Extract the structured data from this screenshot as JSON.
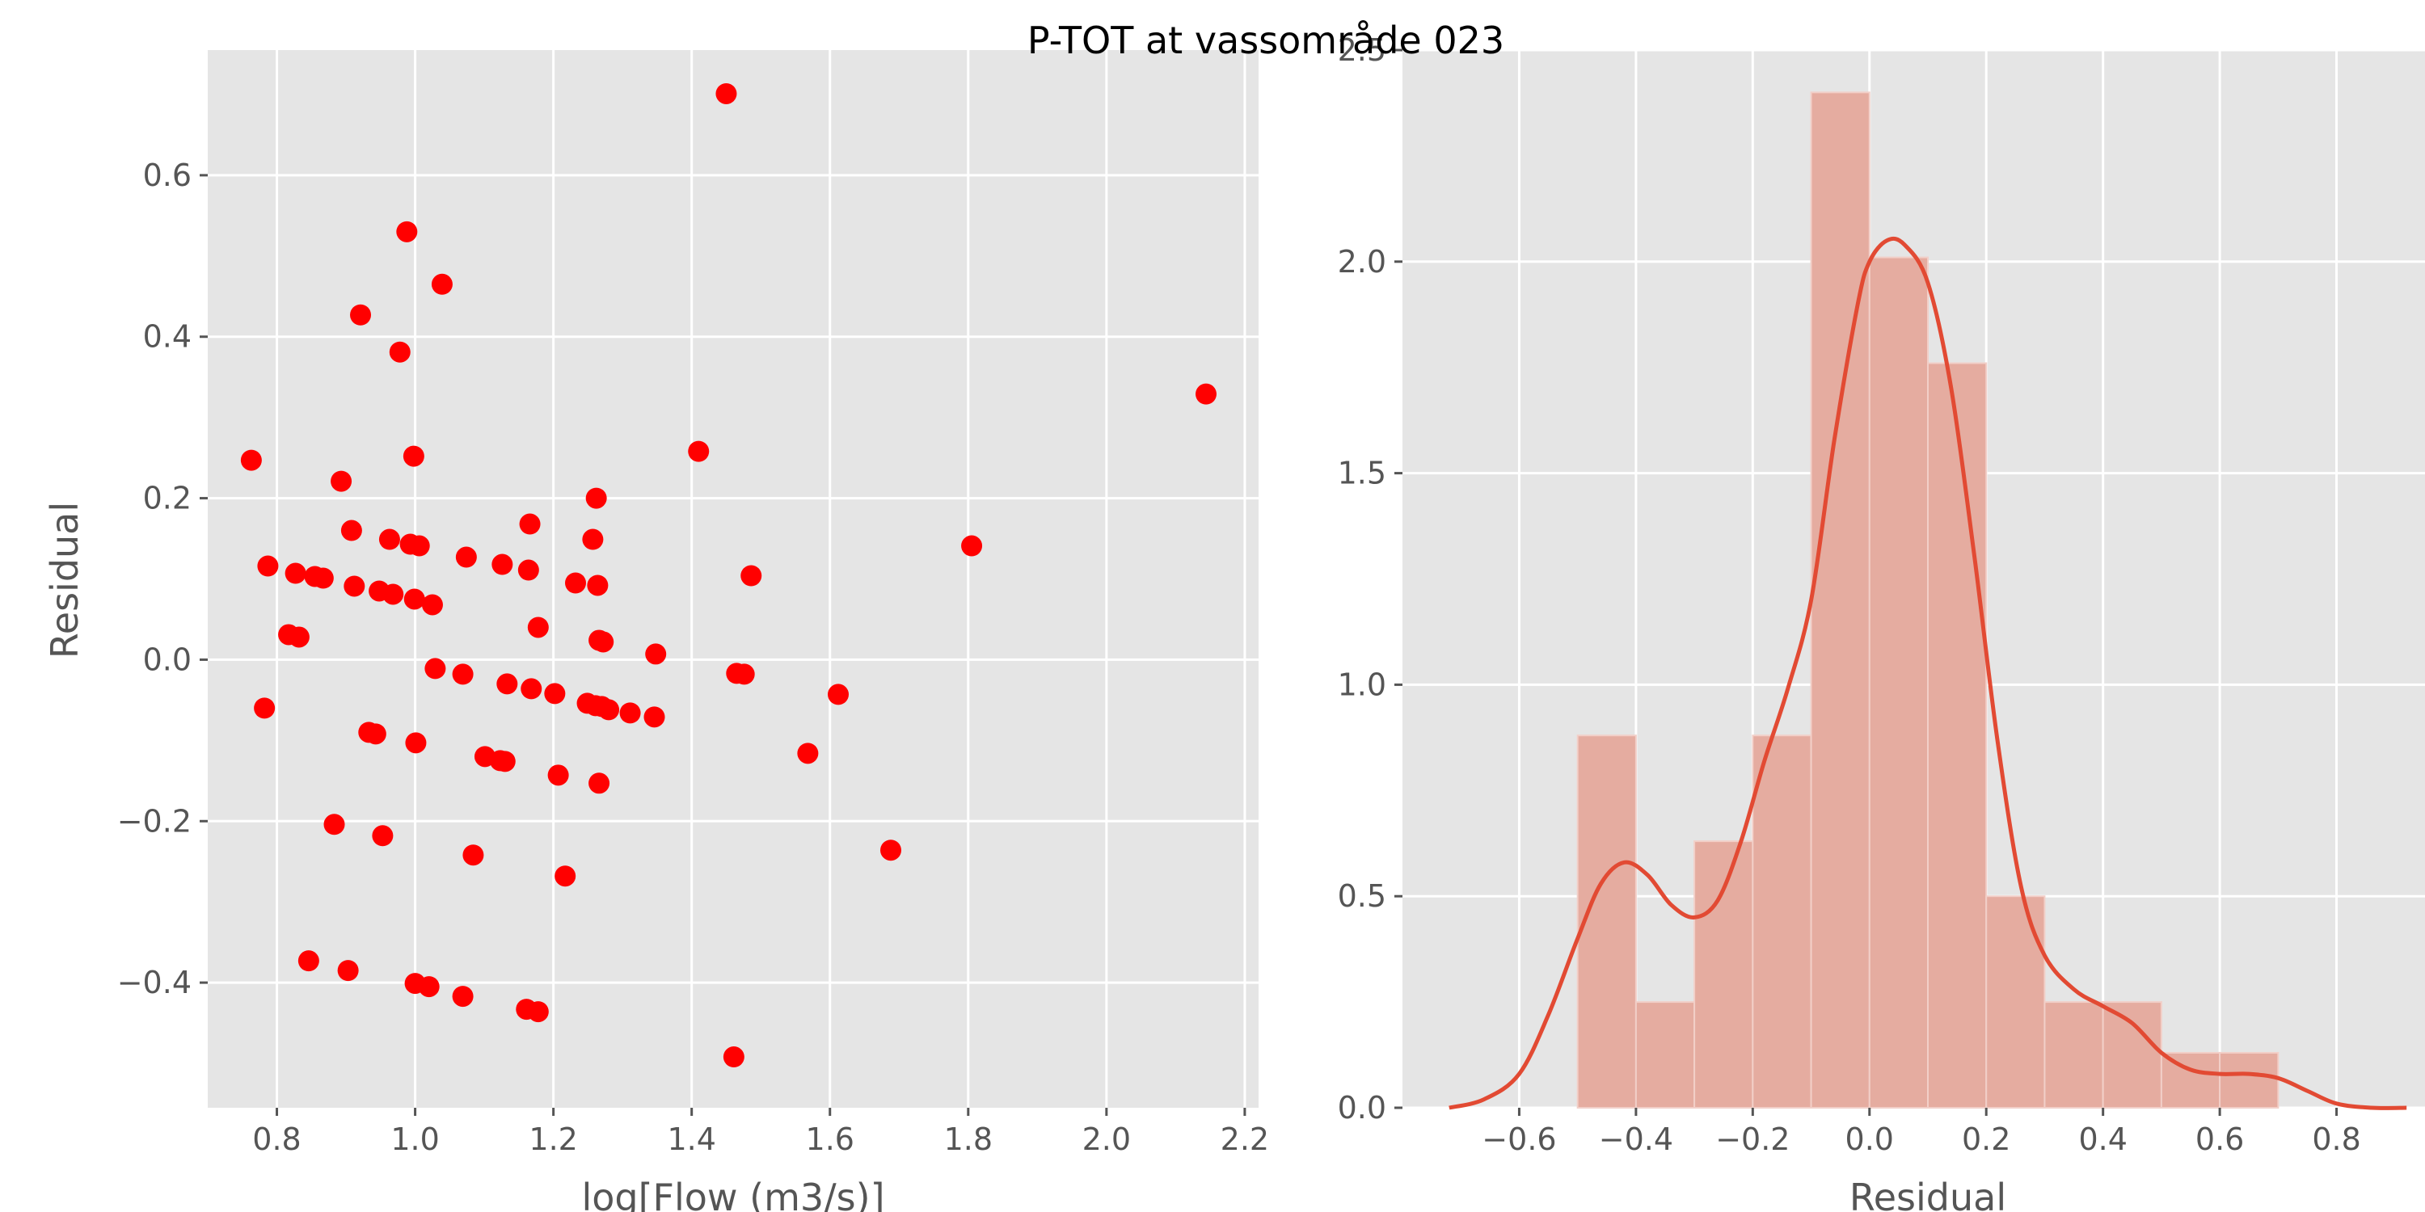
{
  "figure": {
    "title": "P-TOT at vassområde 023"
  },
  "chart_data": [
    {
      "type": "scatter",
      "xlabel": "log[Flow (m3/s)]",
      "ylabel": "Residual",
      "xlim": [
        0.7,
        2.22
      ],
      "ylim": [
        -0.555,
        0.755
      ],
      "xticks": [
        0.8,
        1.0,
        1.2,
        1.4,
        1.6,
        1.8,
        2.0,
        2.2
      ],
      "xtick_labels": [
        "0.8",
        "1.0",
        "1.2",
        "1.4",
        "1.6",
        "1.8",
        "2.0",
        "2.2"
      ],
      "yticks": [
        -0.4,
        -0.2,
        0.0,
        0.2,
        0.4,
        0.6
      ],
      "ytick_labels": [
        "−0.4",
        "−0.2",
        "0.0",
        "0.2",
        "0.4",
        "0.6"
      ],
      "grid": true,
      "color": "#ff0000",
      "points": [
        [
          0.763,
          0.247
        ],
        [
          0.782,
          -0.06
        ],
        [
          0.787,
          0.116
        ],
        [
          0.817,
          0.031
        ],
        [
          0.827,
          0.107
        ],
        [
          0.832,
          0.028
        ],
        [
          0.846,
          -0.373
        ],
        [
          0.855,
          0.103
        ],
        [
          0.867,
          0.101
        ],
        [
          0.883,
          -0.204
        ],
        [
          0.893,
          0.221
        ],
        [
          0.903,
          -0.385
        ],
        [
          0.908,
          0.16
        ],
        [
          0.912,
          0.091
        ],
        [
          0.921,
          0.427
        ],
        [
          0.933,
          -0.09
        ],
        [
          0.943,
          -0.092
        ],
        [
          0.948,
          0.085
        ],
        [
          0.953,
          -0.218
        ],
        [
          0.963,
          0.149
        ],
        [
          0.968,
          0.081
        ],
        [
          0.978,
          0.381
        ],
        [
          0.988,
          0.53
        ],
        [
          0.993,
          0.143
        ],
        [
          0.998,
          0.252
        ],
        [
          0.999,
          0.075
        ],
        [
          1.0,
          -0.401
        ],
        [
          1.001,
          -0.103
        ],
        [
          1.006,
          0.141
        ],
        [
          1.02,
          -0.405
        ],
        [
          1.025,
          0.068
        ],
        [
          1.029,
          -0.011
        ],
        [
          1.039,
          0.465
        ],
        [
          1.069,
          -0.417
        ],
        [
          1.069,
          -0.018
        ],
        [
          1.074,
          0.127
        ],
        [
          1.084,
          -0.242
        ],
        [
          1.101,
          -0.12
        ],
        [
          1.123,
          -0.125
        ],
        [
          1.126,
          0.118
        ],
        [
          1.13,
          -0.126
        ],
        [
          1.133,
          -0.03
        ],
        [
          1.161,
          -0.433
        ],
        [
          1.164,
          0.111
        ],
        [
          1.166,
          0.168
        ],
        [
          1.168,
          -0.036
        ],
        [
          1.178,
          -0.436
        ],
        [
          1.178,
          0.04
        ],
        [
          1.202,
          -0.042
        ],
        [
          1.207,
          -0.143
        ],
        [
          1.217,
          -0.268
        ],
        [
          1.232,
          0.095
        ],
        [
          1.249,
          -0.054
        ],
        [
          1.257,
          0.149
        ],
        [
          1.261,
          -0.057
        ],
        [
          1.262,
          0.2
        ],
        [
          1.264,
          0.092
        ],
        [
          1.266,
          -0.153
        ],
        [
          1.266,
          0.024
        ],
        [
          1.27,
          -0.058
        ],
        [
          1.272,
          0.022
        ],
        [
          1.28,
          -0.062
        ],
        [
          1.311,
          -0.066
        ],
        [
          1.346,
          -0.071
        ],
        [
          1.348,
          0.007
        ],
        [
          1.41,
          0.258
        ],
        [
          1.45,
          0.701
        ],
        [
          1.461,
          -0.492
        ],
        [
          1.465,
          -0.017
        ],
        [
          1.476,
          -0.018
        ],
        [
          1.486,
          0.104
        ],
        [
          1.568,
          -0.116
        ],
        [
          1.612,
          -0.043
        ],
        [
          1.688,
          -0.236
        ],
        [
          1.805,
          0.141
        ],
        [
          2.144,
          0.329
        ]
      ]
    },
    {
      "type": "bar",
      "subtype": "histogram with density curve",
      "xlabel": "Residual",
      "ylabel": "",
      "xlim": [
        -0.8,
        1.0
      ],
      "ylim": [
        0,
        2.5
      ],
      "xticks": [
        -0.6,
        -0.4,
        -0.2,
        0.0,
        0.2,
        0.4,
        0.6,
        0.8
      ],
      "xtick_labels": [
        "−0.6",
        "−0.4",
        "−0.2",
        "0.0",
        "0.2",
        "0.4",
        "0.6",
        "0.8"
      ],
      "yticks": [
        0.0,
        0.5,
        1.0,
        1.5,
        2.0,
        2.5
      ],
      "ytick_labels": [
        "0.0",
        "0.5",
        "1.0",
        "1.5",
        "2.0",
        "2.5"
      ],
      "grid": true,
      "bar_color": "#e5aca0",
      "line_color": "#e24a33",
      "bin_edges": [
        -0.5,
        -0.4,
        -0.3,
        -0.2,
        -0.1,
        0.0,
        0.1,
        0.2,
        0.3,
        0.4,
        0.5,
        0.6,
        0.7
      ],
      "values": [
        0.88,
        0.25,
        0.63,
        0.88,
        2.4,
        2.01,
        1.76,
        0.5,
        0.25,
        0.25,
        0.13,
        0.13
      ],
      "density_curve": [
        [
          -0.72,
          0.0
        ],
        [
          -0.66,
          0.02
        ],
        [
          -0.6,
          0.08
        ],
        [
          -0.55,
          0.22
        ],
        [
          -0.5,
          0.4
        ],
        [
          -0.46,
          0.53
        ],
        [
          -0.42,
          0.58
        ],
        [
          -0.38,
          0.55
        ],
        [
          -0.34,
          0.48
        ],
        [
          -0.3,
          0.45
        ],
        [
          -0.26,
          0.49
        ],
        [
          -0.22,
          0.63
        ],
        [
          -0.18,
          0.82
        ],
        [
          -0.14,
          0.99
        ],
        [
          -0.1,
          1.2
        ],
        [
          -0.06,
          1.58
        ],
        [
          -0.02,
          1.9
        ],
        [
          0.0,
          2.0
        ],
        [
          0.03,
          2.05
        ],
        [
          0.06,
          2.04
        ],
        [
          0.1,
          1.95
        ],
        [
          0.14,
          1.7
        ],
        [
          0.18,
          1.3
        ],
        [
          0.22,
          0.86
        ],
        [
          0.26,
          0.52
        ],
        [
          0.3,
          0.36
        ],
        [
          0.35,
          0.28
        ],
        [
          0.4,
          0.24
        ],
        [
          0.45,
          0.2
        ],
        [
          0.5,
          0.13
        ],
        [
          0.55,
          0.09
        ],
        [
          0.6,
          0.08
        ],
        [
          0.65,
          0.08
        ],
        [
          0.7,
          0.07
        ],
        [
          0.75,
          0.04
        ],
        [
          0.8,
          0.01
        ],
        [
          0.86,
          0.0
        ],
        [
          0.92,
          0.0
        ]
      ]
    }
  ]
}
